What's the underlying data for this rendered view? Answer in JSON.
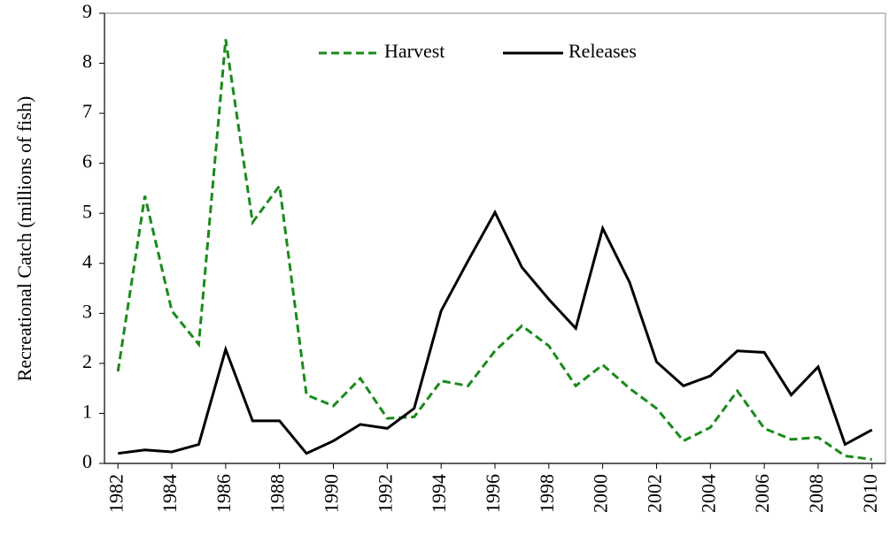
{
  "chart_data": {
    "type": "line",
    "y_label": "Recreational Catch (millions  of fish)",
    "x": [
      1982,
      1983,
      1984,
      1985,
      1986,
      1987,
      1988,
      1989,
      1990,
      1991,
      1992,
      1993,
      1994,
      1995,
      1996,
      1997,
      1998,
      1999,
      2000,
      2001,
      2002,
      2003,
      2004,
      2005,
      2006,
      2007,
      2008,
      2009,
      2010
    ],
    "series": [
      {
        "name": "Harvest",
        "color": "#1a8a1a",
        "dash": true,
        "values": [
          1.84,
          5.35,
          3.05,
          2.38,
          8.48,
          4.82,
          5.55,
          1.37,
          1.15,
          1.7,
          0.9,
          0.93,
          1.65,
          1.55,
          2.25,
          2.75,
          2.35,
          1.55,
          1.97,
          1.5,
          1.1,
          0.45,
          0.72,
          1.45,
          0.7,
          0.48,
          0.52,
          0.15,
          0.08
        ]
      },
      {
        "name": "Releases",
        "color": "#000000",
        "dash": false,
        "values": [
          0.2,
          0.27,
          0.23,
          0.38,
          2.28,
          0.85,
          0.85,
          0.2,
          0.45,
          0.78,
          0.7,
          1.1,
          3.05,
          4.05,
          5.02,
          3.92,
          3.28,
          2.7,
          4.7,
          3.62,
          2.03,
          1.55,
          1.75,
          2.25,
          2.22,
          1.37,
          1.93,
          0.38,
          0.67
        ]
      }
    ],
    "xlim": [
      1981.5,
      2010.5
    ],
    "xticks": [
      1982,
      1984,
      1986,
      1988,
      1990,
      1992,
      1994,
      1996,
      1998,
      2000,
      2002,
      2004,
      2006,
      2008,
      2010
    ],
    "ylim": [
      0,
      9
    ],
    "yticks": [
      0,
      1,
      2,
      3,
      4,
      5,
      6,
      7,
      8,
      9
    ],
    "grid": false
  }
}
